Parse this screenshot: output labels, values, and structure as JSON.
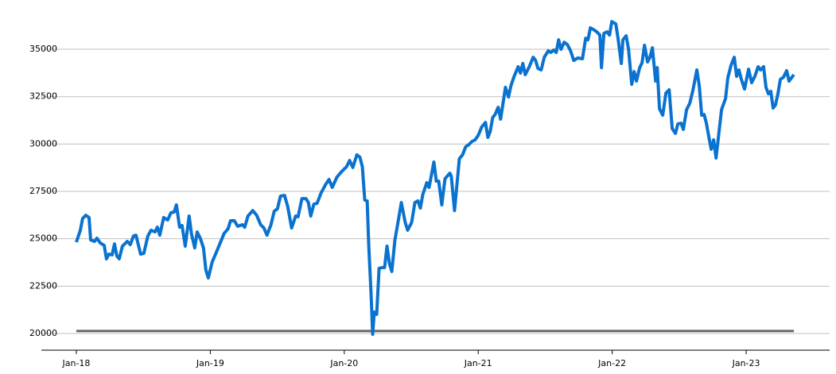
{
  "chart_data": {
    "type": "line",
    "series": [
      {
        "color": "#0a72cf",
        "x": [
          2018.0,
          2018.03,
          2018.047,
          2018.071,
          2018.095,
          2018.107,
          2018.136,
          2018.154,
          2018.178,
          2018.208,
          2018.225,
          2018.243,
          2018.267,
          2018.285,
          2018.302,
          2018.32,
          2018.344,
          2018.38,
          2018.403,
          2018.427,
          2018.445,
          2018.48,
          2018.504,
          2018.534,
          2018.558,
          2018.587,
          2018.605,
          2018.623,
          2018.652,
          2018.682,
          2018.706,
          2018.73,
          2018.747,
          2018.771,
          2018.789,
          2018.813,
          2018.842,
          2018.86,
          2018.884,
          2018.902,
          2018.925,
          2018.949,
          2018.967,
          2018.985,
          2019.014,
          2019.044,
          2019.074,
          2019.103,
          2019.133,
          2019.151,
          2019.18,
          2019.204,
          2019.24,
          2019.257,
          2019.281,
          2019.317,
          2019.346,
          2019.376,
          2019.4,
          2019.423,
          2019.453,
          2019.477,
          2019.501,
          2019.524,
          2019.554,
          2019.578,
          2019.607,
          2019.637,
          2019.655,
          2019.684,
          2019.714,
          2019.732,
          2019.75,
          2019.773,
          2019.797,
          2019.827,
          2019.862,
          2019.886,
          2019.91,
          2019.945,
          2019.981,
          2020.017,
          2020.04,
          2020.064,
          2020.094,
          2020.117,
          2020.135,
          2020.153,
          2020.171,
          2020.183,
          2020.2,
          2020.212,
          2020.224,
          2020.242,
          2020.26,
          2020.283,
          2020.301,
          2020.319,
          2020.337,
          2020.355,
          2020.378,
          2020.396,
          2020.426,
          2020.455,
          2020.473,
          2020.503,
          2020.527,
          2020.55,
          2020.568,
          2020.586,
          2020.616,
          2020.633,
          2020.669,
          2020.687,
          2020.705,
          2020.728,
          2020.752,
          2020.788,
          2020.799,
          2020.823,
          2020.859,
          2020.883,
          2020.906,
          2020.93,
          2020.954,
          2020.977,
          2021.001,
          2021.025,
          2021.054,
          2021.072,
          2021.09,
          2021.108,
          2021.126,
          2021.149,
          2021.167,
          2021.185,
          2021.203,
          2021.226,
          2021.244,
          2021.268,
          2021.298,
          2021.315,
          2021.333,
          2021.351,
          2021.381,
          2021.41,
          2021.428,
          2021.446,
          2021.47,
          2021.493,
          2021.523,
          2021.541,
          2021.564,
          2021.582,
          2021.6,
          2021.618,
          2021.642,
          2021.665,
          2021.689,
          2021.713,
          2021.742,
          2021.778,
          2021.802,
          2021.819,
          2021.837,
          2021.861,
          2021.885,
          2021.908,
          2021.92,
          2021.938,
          2021.962,
          2021.98,
          2021.997,
          2022.027,
          2022.045,
          2022.068,
          2022.08,
          2022.104,
          2022.122,
          2022.146,
          2022.164,
          2022.181,
          2022.205,
          2022.223,
          2022.241,
          2022.264,
          2022.282,
          2022.3,
          2022.324,
          2022.336,
          2022.353,
          2022.377,
          2022.401,
          2022.425,
          2022.448,
          2022.472,
          2022.49,
          2022.514,
          2022.531,
          2022.555,
          2022.579,
          2022.602,
          2022.632,
          2022.65,
          2022.668,
          2022.686,
          2022.703,
          2022.721,
          2022.739,
          2022.757,
          2022.775,
          2022.792,
          2022.816,
          2022.846,
          2022.863,
          2022.887,
          2022.911,
          2022.929,
          2022.946,
          2022.964,
          2022.988,
          2023.018,
          2023.041,
          2023.065,
          2023.089,
          2023.107,
          2023.13,
          2023.148,
          2023.166,
          2023.184,
          2023.201,
          2023.219,
          2023.237,
          2023.255,
          2023.279,
          2023.302,
          2023.32,
          2023.338,
          2023.356
        ],
        "values": [
          24820,
          25450,
          26070,
          26240,
          26120,
          24940,
          24860,
          25030,
          24780,
          24650,
          23940,
          24190,
          24150,
          24730,
          24100,
          23940,
          24610,
          24860,
          24690,
          25150,
          25190,
          24190,
          24230,
          25150,
          25450,
          25360,
          25610,
          25190,
          26120,
          25990,
          26370,
          26410,
          26790,
          25610,
          25700,
          24610,
          26200,
          25240,
          24520,
          25360,
          25030,
          24520,
          23350,
          22930,
          23770,
          24270,
          24780,
          25280,
          25530,
          25950,
          25950,
          25660,
          25740,
          25610,
          26200,
          26490,
          26240,
          25740,
          25570,
          25190,
          25740,
          26450,
          26580,
          27250,
          27290,
          26700,
          25570,
          26200,
          26160,
          27120,
          27120,
          26910,
          26200,
          26830,
          26870,
          27420,
          27880,
          28130,
          27710,
          28250,
          28550,
          28800,
          29130,
          28760,
          29430,
          29300,
          28800,
          27040,
          27000,
          24610,
          22100,
          19960,
          21130,
          21010,
          23440,
          23480,
          23480,
          24610,
          23690,
          23270,
          24940,
          25660,
          26910,
          25860,
          25450,
          25860,
          26910,
          27000,
          26620,
          27330,
          27960,
          27710,
          29050,
          28040,
          28040,
          26790,
          28170,
          28460,
          28300,
          26490,
          29220,
          29430,
          29850,
          29970,
          30140,
          30220,
          30470,
          30890,
          31140,
          30350,
          30680,
          31400,
          31560,
          31940,
          31310,
          32150,
          32990,
          32480,
          33070,
          33570,
          34080,
          33740,
          34250,
          33660,
          34080,
          34580,
          34410,
          33990,
          33910,
          34580,
          34920,
          34830,
          34960,
          34830,
          35500,
          35000,
          35370,
          35250,
          34920,
          34410,
          34540,
          34500,
          35580,
          35500,
          36130,
          36040,
          35920,
          35750,
          34030,
          35840,
          35920,
          35750,
          36460,
          36340,
          35500,
          34250,
          35500,
          35710,
          35000,
          33150,
          33820,
          33320,
          34030,
          34290,
          35210,
          34330,
          34580,
          35080,
          33320,
          34030,
          31860,
          31520,
          32690,
          32860,
          30810,
          30560,
          31060,
          31100,
          30770,
          31810,
          32150,
          32820,
          33910,
          33070,
          31520,
          31560,
          31100,
          30390,
          29720,
          30220,
          29260,
          30310,
          31810,
          32400,
          33490,
          34160,
          34580,
          33570,
          33910,
          33410,
          32900,
          33950,
          33240,
          33570,
          34080,
          33910,
          34080,
          32990,
          32650,
          32780,
          31900,
          32070,
          32650,
          33410,
          33530,
          33870,
          33320,
          33490,
          33660
        ]
      },
      {
        "color": "#666666",
        "x": [
          2018.0,
          2023.356
        ],
        "values": [
          20130,
          20130
        ]
      }
    ],
    "xlim": [
      2017.739,
      2023.623
    ],
    "xticks": [
      {
        "value": 2018,
        "label": "Jan-18"
      },
      {
        "value": 2019,
        "label": "Jan-19"
      },
      {
        "value": 2020,
        "label": "Jan-20"
      },
      {
        "value": 2021,
        "label": "Jan-21"
      },
      {
        "value": 2022,
        "label": "Jan-22"
      },
      {
        "value": 2023,
        "label": "Jan-23"
      }
    ],
    "ylim": [
      19120,
      37600
    ],
    "yticks": [
      20000,
      22500,
      25000,
      27500,
      30000,
      32500,
      35000
    ],
    "grid": true
  }
}
